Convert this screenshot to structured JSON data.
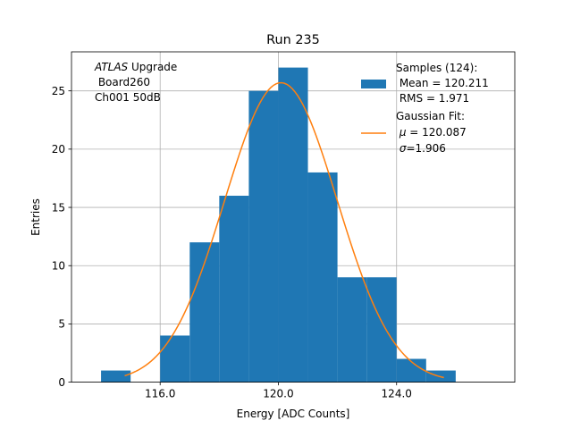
{
  "chart_data": {
    "type": "bar",
    "title": "Run 235",
    "xlabel": "Energy [ADC Counts]",
    "ylabel": "Entries",
    "xlim": [
      113.0,
      128.0
    ],
    "ylim": [
      0,
      28.35
    ],
    "xticks": [
      116.0,
      120.0,
      124.0
    ],
    "xtick_labels": [
      "116.0",
      "120.0",
      "124.0"
    ],
    "yticks": [
      0,
      5,
      10,
      15,
      20,
      25
    ],
    "grid": true,
    "legend_position": "top-right",
    "annotation": {
      "line1_italic": "ATLAS",
      "line1_rest": " Upgrade",
      "line2": " Board260",
      "line3": " Ch001 50dB"
    },
    "histogram": {
      "name": "Samples (124):",
      "color": "#1f77b4",
      "bin_edges": [
        114,
        115,
        116,
        117,
        118,
        119,
        120,
        121,
        122,
        123,
        124,
        125,
        126
      ],
      "counts": [
        1,
        0,
        4,
        12,
        16,
        25,
        27,
        18,
        9,
        9,
        2,
        1
      ]
    },
    "fit": {
      "name": "Gaussian Fit:",
      "color": "#ff7f0e",
      "mu": 120.087,
      "sigma": 1.906,
      "amplitude": 25.7,
      "x_range": [
        114.8,
        125.6
      ]
    },
    "legend": {
      "hist_lines": [
        "Samples (124):",
        " Mean = 120.211",
        " RMS = 1.971"
      ],
      "fit_line1": "Gaussian Fit:",
      "fit_mu_symbol": "μ",
      "fit_mu_rest": " = 120.087",
      "fit_sigma_symbol": "σ",
      "fit_sigma_rest": "=1.906"
    }
  }
}
